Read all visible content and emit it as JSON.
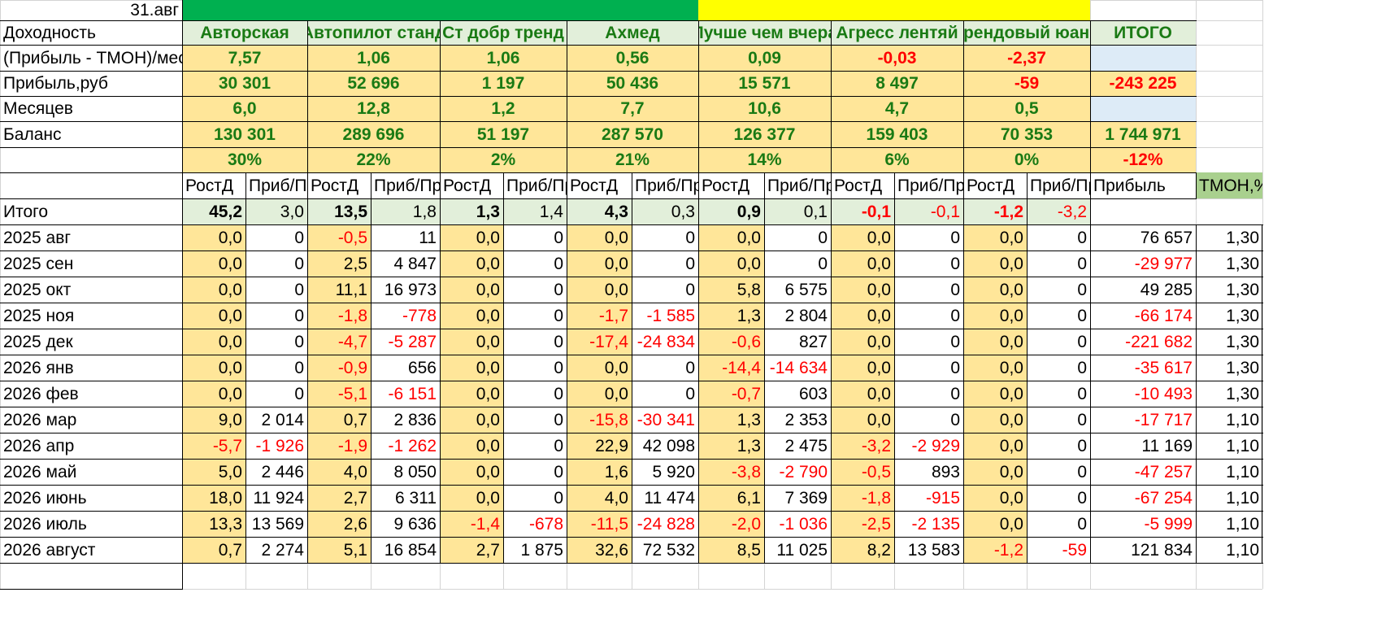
{
  "sheet": {
    "date_cell": "31.авг",
    "strategies": [
      "Авторская",
      "Автопилот станд",
      "Ст добр тренд",
      "Ахмед",
      "Лучше чем вчера",
      "Агресс лентяй",
      "Трендовый юань"
    ],
    "total_label": "ИТОГО",
    "row_labels": {
      "yield": "Доходность",
      "profit_pct": "(Прибыль - ТМОН)/мес,%",
      "profit_rub": "Прибыль,руб",
      "months": "Месяцев",
      "balance": "Баланс",
      "totals": "Итого"
    },
    "profit_pct": [
      "7,57",
      "1,06",
      "1,06",
      "0,56",
      "0,09",
      "-0,03",
      "-2,37"
    ],
    "profit_rub": [
      "30 301",
      "52 696",
      "1 197",
      "50 436",
      "15 571",
      "8 497",
      "-59"
    ],
    "profit_rub_total": "-243 225",
    "months": [
      "6,0",
      "12,8",
      "1,2",
      "7,7",
      "10,6",
      "4,7",
      "0,5"
    ],
    "balance": [
      "130 301",
      "289 696",
      "51 197",
      "287 570",
      "126 377",
      "159 403",
      "70 353"
    ],
    "balance_total": "1 744 971",
    "share_pct": [
      "30%",
      "22%",
      "2%",
      "21%",
      "14%",
      "6%",
      "0%"
    ],
    "share_pct_total": "-12%",
    "sub_headers": [
      "РостД",
      "Приб/Пр",
      "Прибыль",
      "ТМОН,%"
    ],
    "totals_row": [
      [
        "45,2",
        "3,0"
      ],
      [
        "13,5",
        "1,8"
      ],
      [
        "1,3",
        "1,4"
      ],
      [
        "4,3",
        "0,3"
      ],
      [
        "0,9",
        "0,1"
      ],
      [
        "-0,1",
        "-0,1"
      ],
      [
        "-1,2",
        "-3,2"
      ]
    ],
    "months_rows": [
      {
        "label": "2025 авг",
        "pairs": [
          [
            "0,0",
            "0"
          ],
          [
            "-0,5",
            "11"
          ],
          [
            "0,0",
            "0"
          ],
          [
            "0,0",
            "0"
          ],
          [
            "0,0",
            "0"
          ],
          [
            "0,0",
            "0"
          ],
          [
            "0,0",
            "0"
          ]
        ],
        "profit": "76 657",
        "tmon": "1,30"
      },
      {
        "label": "2025 сен",
        "pairs": [
          [
            "0,0",
            "0"
          ],
          [
            "2,5",
            "4 847"
          ],
          [
            "0,0",
            "0"
          ],
          [
            "0,0",
            "0"
          ],
          [
            "0,0",
            "0"
          ],
          [
            "0,0",
            "0"
          ],
          [
            "0,0",
            "0"
          ]
        ],
        "profit": "-29 977",
        "tmon": "1,30"
      },
      {
        "label": "2025 окт",
        "pairs": [
          [
            "0,0",
            "0"
          ],
          [
            "11,1",
            "16 973"
          ],
          [
            "0,0",
            "0"
          ],
          [
            "0,0",
            "0"
          ],
          [
            "5,8",
            "6 575"
          ],
          [
            "0,0",
            "0"
          ],
          [
            "0,0",
            "0"
          ]
        ],
        "profit": "49 285",
        "tmon": "1,30"
      },
      {
        "label": "2025 ноя",
        "pairs": [
          [
            "0,0",
            "0"
          ],
          [
            "-1,8",
            "-778"
          ],
          [
            "0,0",
            "0"
          ],
          [
            "-1,7",
            "-1 585"
          ],
          [
            "1,3",
            "2 804"
          ],
          [
            "0,0",
            "0"
          ],
          [
            "0,0",
            "0"
          ]
        ],
        "profit": "-66 174",
        "tmon": "1,30"
      },
      {
        "label": "2025 дек",
        "pairs": [
          [
            "0,0",
            "0"
          ],
          [
            "-4,7",
            "-5 287"
          ],
          [
            "0,0",
            "0"
          ],
          [
            "-17,4",
            "-24 834"
          ],
          [
            "-0,6",
            "827"
          ],
          [
            "0,0",
            "0"
          ],
          [
            "0,0",
            "0"
          ]
        ],
        "profit": "-221 682",
        "tmon": "1,30"
      },
      {
        "label": "2026 янв",
        "pairs": [
          [
            "0,0",
            "0"
          ],
          [
            "-0,9",
            "656"
          ],
          [
            "0,0",
            "0"
          ],
          [
            "0,0",
            "0"
          ],
          [
            "-14,4",
            "-14 634"
          ],
          [
            "0,0",
            "0"
          ],
          [
            "0,0",
            "0"
          ]
        ],
        "profit": "-35 617",
        "tmon": "1,30"
      },
      {
        "label": "2026 фев",
        "pairs": [
          [
            "0,0",
            "0"
          ],
          [
            "-5,1",
            "-6 151"
          ],
          [
            "0,0",
            "0"
          ],
          [
            "0,0",
            "0"
          ],
          [
            "-0,7",
            "603"
          ],
          [
            "0,0",
            "0"
          ],
          [
            "0,0",
            "0"
          ]
        ],
        "profit": "-10 493",
        "tmon": "1,30"
      },
      {
        "label": "2026 мар",
        "pairs": [
          [
            "9,0",
            "2 014"
          ],
          [
            "0,7",
            "2 836"
          ],
          [
            "0,0",
            "0"
          ],
          [
            "-15,8",
            "-30 341"
          ],
          [
            "1,3",
            "2 353"
          ],
          [
            "0,0",
            "0"
          ],
          [
            "0,0",
            "0"
          ]
        ],
        "profit": "-17 717",
        "tmon": "1,10"
      },
      {
        "label": "2026 апр",
        "pairs": [
          [
            "-5,7",
            "-1 926"
          ],
          [
            "-1,9",
            "-1 262"
          ],
          [
            "0,0",
            "0"
          ],
          [
            "22,9",
            "42 098"
          ],
          [
            "1,3",
            "2 475"
          ],
          [
            "-3,2",
            "-2 929"
          ],
          [
            "0,0",
            "0"
          ]
        ],
        "profit": "11 169",
        "tmon": "1,10"
      },
      {
        "label": "2026 май",
        "pairs": [
          [
            "5,0",
            "2 446"
          ],
          [
            "4,0",
            "8 050"
          ],
          [
            "0,0",
            "0"
          ],
          [
            "1,6",
            "5 920"
          ],
          [
            "-3,8",
            "-2 790"
          ],
          [
            "-0,5",
            "893"
          ],
          [
            "0,0",
            "0"
          ]
        ],
        "profit": "-47 257",
        "tmon": "1,10"
      },
      {
        "label": "2026 июнь",
        "pairs": [
          [
            "18,0",
            "11 924"
          ],
          [
            "2,7",
            "6 311"
          ],
          [
            "0,0",
            "0"
          ],
          [
            "4,0",
            "11 474"
          ],
          [
            "6,1",
            "7 369"
          ],
          [
            "-1,8",
            "-915"
          ],
          [
            "0,0",
            "0"
          ]
        ],
        "profit": "-67 254",
        "tmon": "1,10"
      },
      {
        "label": "2026 июль",
        "pairs": [
          [
            "13,3",
            "13 569"
          ],
          [
            "2,6",
            "9 636"
          ],
          [
            "-1,4",
            "-678"
          ],
          [
            "-11,5",
            "-24 828"
          ],
          [
            "-2,0",
            "-1 036"
          ],
          [
            "-2,5",
            "-2 135"
          ],
          [
            "0,0",
            "0"
          ]
        ],
        "profit": "-5 999",
        "tmon": "1,10"
      },
      {
        "label": "2026 август",
        "pairs": [
          [
            "0,7",
            "2 274"
          ],
          [
            "5,1",
            "16 854"
          ],
          [
            "2,7",
            "1 875"
          ],
          [
            "32,6",
            "72 532"
          ],
          [
            "8,5",
            "11 025"
          ],
          [
            "8,2",
            "13 583"
          ],
          [
            "-1,2",
            "-59"
          ]
        ],
        "profit": "121 834",
        "tmon": "1,10"
      }
    ],
    "colors": {
      "green_fill": "#00b050",
      "yellow_fill": "#ffff00",
      "cream_fill": "#ffe699",
      "light_green_fill": "#e2efda",
      "light_blue_fill": "#ddebf7",
      "tmon_header_fill": "#a9d08e",
      "positive_text": "#1a7a14",
      "negative_text": "#ff0000"
    }
  }
}
